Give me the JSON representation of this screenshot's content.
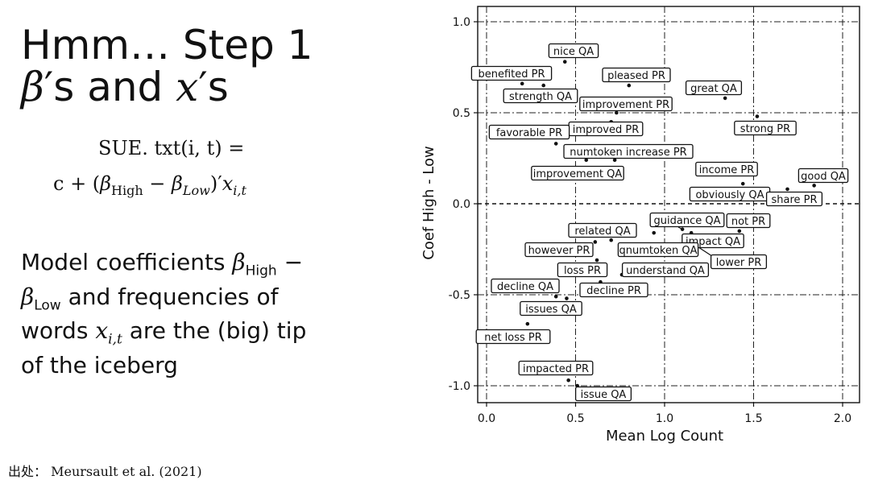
{
  "slide": {
    "title_line1": "Hmm… Step 1",
    "title_beta": "β",
    "title_mid": "′s and ",
    "title_x": "x",
    "title_end": "′s",
    "formula_line1": "SUE. txt(i, t) =",
    "formula_c": "c + (",
    "formula_beta": "β",
    "formula_high": "High",
    "formula_minus": " − ",
    "formula_low": "Low",
    "formula_close": ")′",
    "formula_x": "x",
    "formula_it": "i,t",
    "desc_a": "Model coefficients ",
    "desc_b": " and frequencies of words ",
    "desc_c": " are the (big) tip of the iceberg",
    "desc_beta": "β",
    "desc_high": "High",
    "desc_minus": " − ",
    "desc_low": "Low",
    "desc_x": "x",
    "desc_it": "i,t",
    "source": "出处：  Meursault et al. (2021)"
  },
  "chart_data": {
    "type": "scatter",
    "xlabel": "Mean Log Count",
    "ylabel": "Coef High - Low",
    "xlim": [
      -0.05,
      2.1
    ],
    "ylim": [
      -1.1,
      1.08
    ],
    "xticks": [
      0.0,
      0.5,
      1.0,
      1.5,
      2.0
    ],
    "yticks": [
      -1.0,
      -0.5,
      0.0,
      0.5,
      1.0
    ],
    "xtick_labels": [
      "0.0",
      "0.5",
      "1.0",
      "1.5",
      "2.0"
    ],
    "ytick_labels": [
      "-1.0",
      "-0.5",
      "0.0",
      "0.5",
      "1.0"
    ],
    "grid": "dash-dot at major ticks",
    "reference_line_y": 0.0,
    "points": [
      {
        "label": "nice QA",
        "x": 0.44,
        "y": 0.78
      },
      {
        "label": "benefited PR",
        "x": 0.2,
        "y": 0.66
      },
      {
        "label": "strength QA",
        "x": 0.32,
        "y": 0.65
      },
      {
        "label": "pleased PR",
        "x": 0.8,
        "y": 0.65
      },
      {
        "label": "great QA",
        "x": 1.34,
        "y": 0.58
      },
      {
        "label": "improvement PR",
        "x": 0.73,
        "y": 0.5
      },
      {
        "label": "strong PR",
        "x": 1.52,
        "y": 0.48
      },
      {
        "label": "improved PR",
        "x": 0.7,
        "y": 0.45
      },
      {
        "label": "favorable PR",
        "x": 0.39,
        "y": 0.33
      },
      {
        "label": "numtoken increase PR",
        "x": 0.72,
        "y": 0.24
      },
      {
        "label": "improvement QA",
        "x": 0.56,
        "y": 0.24
      },
      {
        "label": "income PR",
        "x": 1.36,
        "y": 0.16
      },
      {
        "label": "good QA",
        "x": 1.84,
        "y": 0.1
      },
      {
        "label": "obviously QA",
        "x": 1.44,
        "y": 0.11
      },
      {
        "label": "share PR",
        "x": 1.69,
        "y": 0.08
      },
      {
        "label": "guidance QA",
        "x": 1.1,
        "y": -0.14
      },
      {
        "label": "not PR",
        "x": 1.42,
        "y": -0.15
      },
      {
        "label": "related QA",
        "x": 0.7,
        "y": -0.2
      },
      {
        "label": "impact QA",
        "x": 1.15,
        "y": -0.16
      },
      {
        "label": "however PR",
        "x": 0.61,
        "y": -0.21
      },
      {
        "label": "qnumtoken QA",
        "x": 0.94,
        "y": -0.16
      },
      {
        "label": "lower PR",
        "x": 1.13,
        "y": -0.2
      },
      {
        "label": "loss PR",
        "x": 0.62,
        "y": -0.31
      },
      {
        "label": "understand QA",
        "x": 0.76,
        "y": -0.39
      },
      {
        "label": "decline PR",
        "x": 0.64,
        "y": -0.43
      },
      {
        "label": "decline QA",
        "x": 0.39,
        "y": -0.51
      },
      {
        "label": "issues QA",
        "x": 0.45,
        "y": -0.52
      },
      {
        "label": "net loss PR",
        "x": 0.23,
        "y": -0.66
      },
      {
        "label": "impacted PR",
        "x": 0.46,
        "y": -0.97
      },
      {
        "label": "issue QA",
        "x": 0.51,
        "y": -1.0
      }
    ]
  }
}
